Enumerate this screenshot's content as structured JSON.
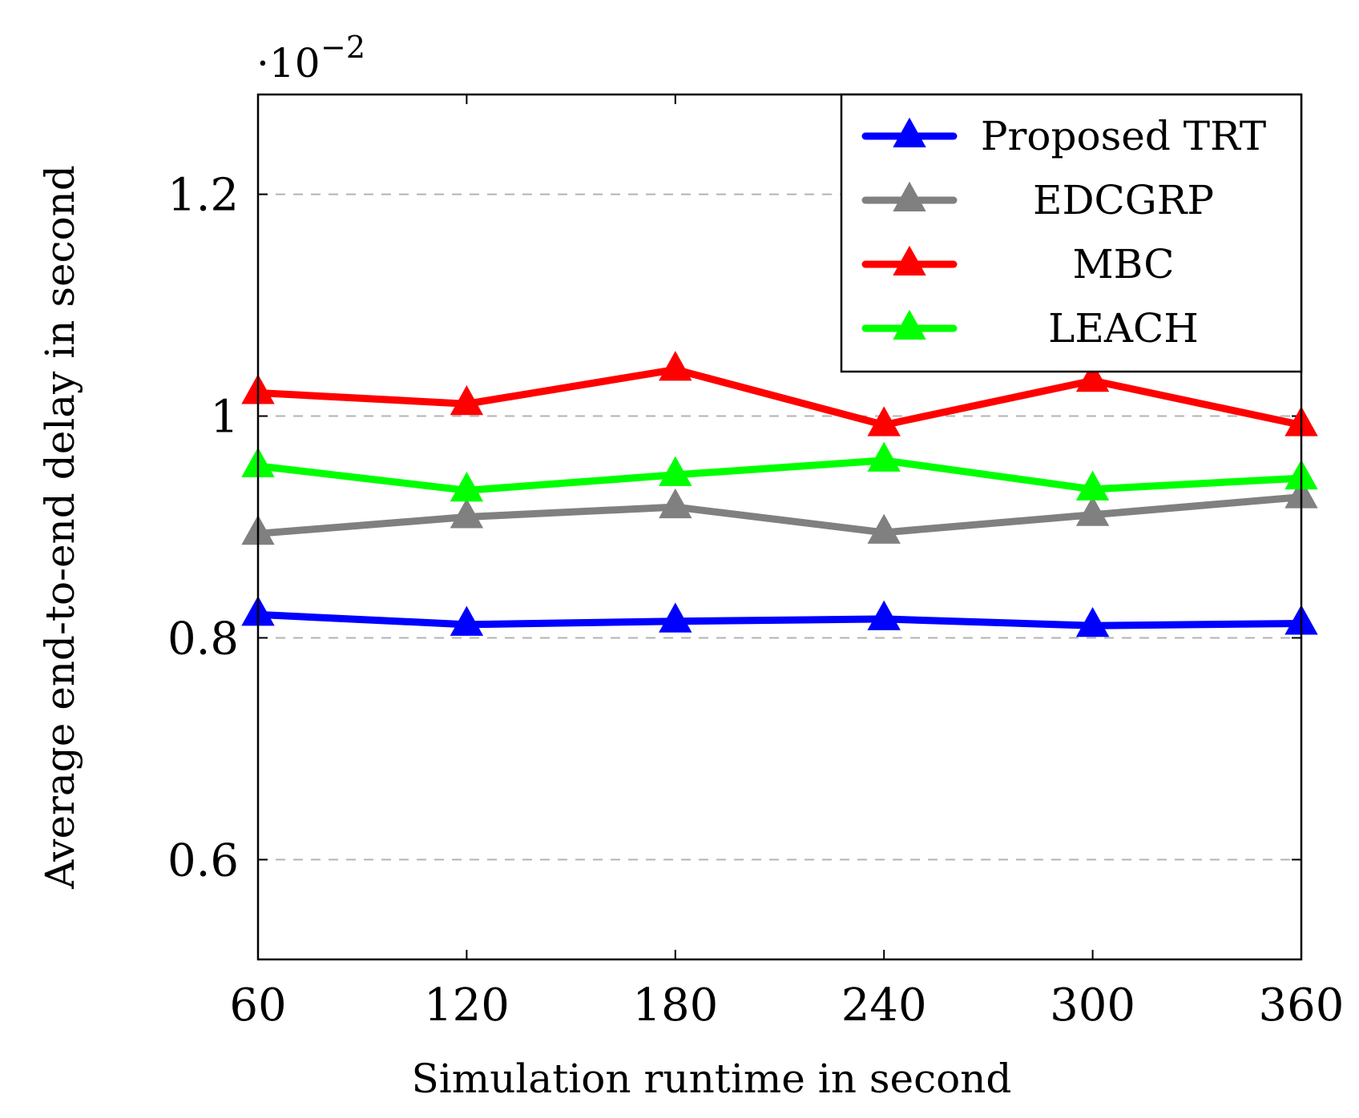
{
  "chart_data": {
    "type": "line",
    "title": "",
    "xlabel": "Simulation runtime in second",
    "ylabel": "Average end-to-end delay in second",
    "y_scale_factor": {
      "prefix": "·10",
      "exponent": "−2"
    },
    "x": [
      60,
      120,
      180,
      240,
      300,
      360
    ],
    "x_ticks": [
      "60",
      "120",
      "180",
      "240",
      "300",
      "360"
    ],
    "y_ticks": [
      {
        "value": 0.6,
        "label": "0.6"
      },
      {
        "value": 0.8,
        "label": "0.8"
      },
      {
        "value": 1.0,
        "label": "1"
      },
      {
        "value": 1.2,
        "label": "1.2"
      }
    ],
    "xlim": [
      60,
      360
    ],
    "ylim": [
      0.51,
      1.29
    ],
    "grid": "horizontal dashed",
    "legend_position": "top-right",
    "marker": "triangle",
    "series": [
      {
        "name": "Proposed TRT",
        "color": "#0000ff",
        "values": [
          0.821,
          0.812,
          0.815,
          0.817,
          0.811,
          0.813
        ]
      },
      {
        "name": "EDCGRP",
        "color": "#808080",
        "values": [
          0.894,
          0.909,
          0.918,
          0.895,
          0.911,
          0.927
        ]
      },
      {
        "name": "MBC",
        "color": "#ff0000",
        "values": [
          1.021,
          1.011,
          1.042,
          0.992,
          1.032,
          0.992
        ]
      },
      {
        "name": "LEACH",
        "color": "#00ff00",
        "values": [
          0.955,
          0.933,
          0.947,
          0.96,
          0.934,
          0.944
        ]
      }
    ]
  }
}
